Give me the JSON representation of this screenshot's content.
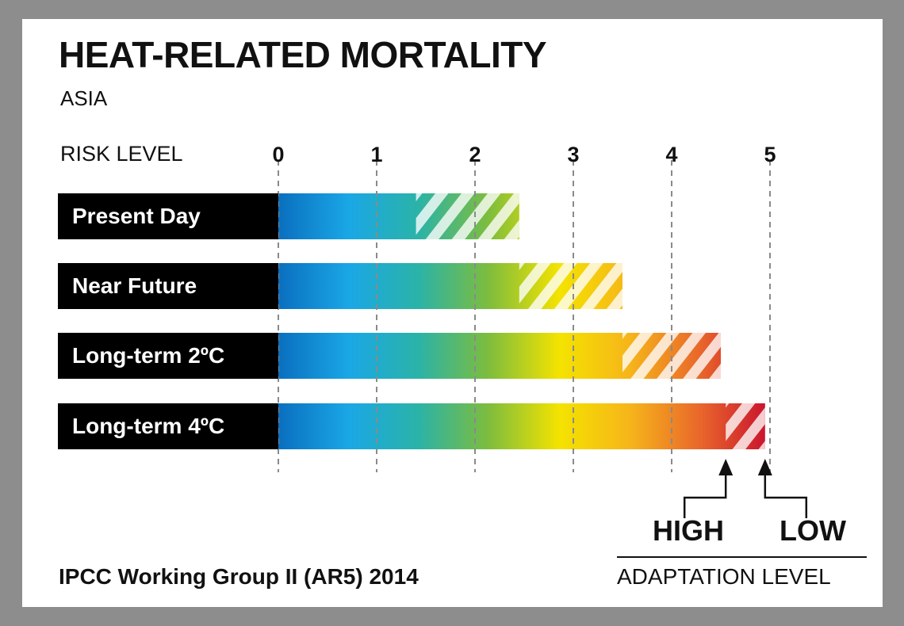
{
  "title": "HEAT-RELATED MORTALITY",
  "subtitle": "ASIA",
  "source": "IPCC Working Group II (AR5) 2014",
  "adaptation": {
    "high": "HIGH",
    "low": "LOW",
    "caption": "ADAPTATION  LEVEL"
  },
  "colors": {
    "background": "#8d8d8d",
    "card": "#ffffff",
    "label_bg": "#000000",
    "gradient": [
      "#0a6fbf",
      "#1aa7e6",
      "#2bb3a7",
      "#7ebd3d",
      "#f4e300",
      "#f6b51a",
      "#e9672b",
      "#c8102e"
    ]
  },
  "chart_data": {
    "type": "bar",
    "xlabel": "RISK LEVEL",
    "xlim": [
      0,
      5
    ],
    "ticks": [
      "0",
      "1",
      "2",
      "3",
      "4",
      "5"
    ],
    "grid": "dashed vertical",
    "categories": [
      "Present Day",
      "Near Future",
      "Long-term 2ºC",
      "Long-term 4ºC"
    ],
    "series": [
      {
        "name": "HIGH",
        "values": [
          1.4,
          2.45,
          3.5,
          4.55
        ]
      },
      {
        "name": "LOW",
        "values": [
          2.45,
          3.5,
          4.5,
          4.95
        ]
      }
    ]
  }
}
